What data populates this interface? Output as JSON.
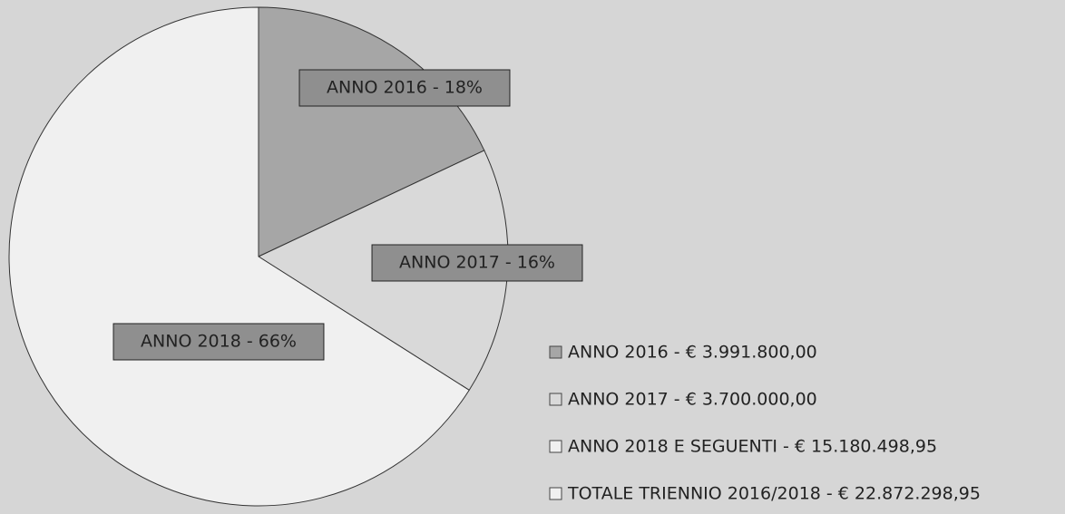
{
  "chart_data": {
    "type": "pie",
    "categories": [
      "ANNO 2016 - € 3.991.800,00",
      "ANNO 2017 - € 3.700.000,00",
      "ANNO 2018 E SEGUENTI - € 15.180.498,95"
    ],
    "values": [
      18,
      16,
      66
    ],
    "value_labels": [
      "ANNO 2016 - 18%",
      "ANNO 2017 - 16%",
      "ANNO 2018 - 66%"
    ],
    "colors": [
      "#a6a6a6",
      "#d9d9d9",
      "#f0f0f0"
    ],
    "total_label": "TOTALE TRIENNIO 2016/2018 - € 22.872.298,95",
    "total_color": "#f0f0f0"
  }
}
